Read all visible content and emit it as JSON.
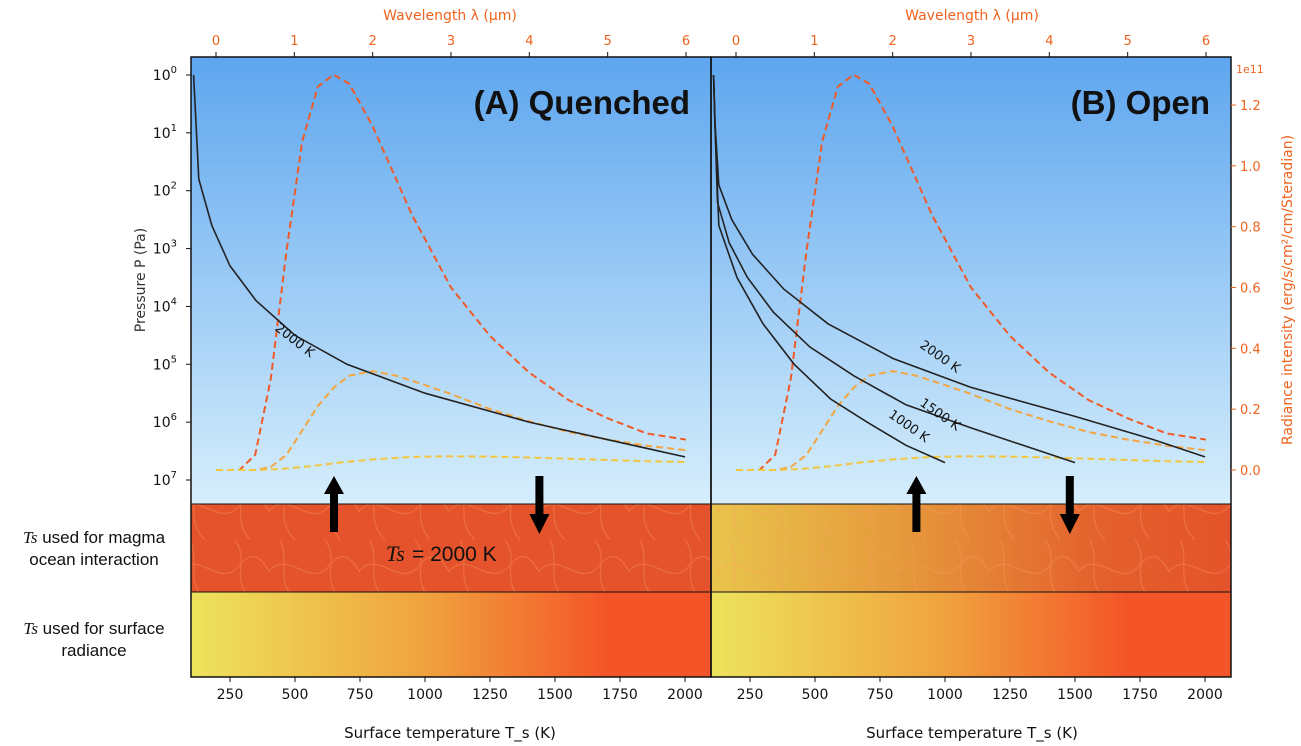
{
  "chart_data": [
    {
      "type": "line",
      "panel_label": "(A) Quenched",
      "top_xlabel": "Wavelength λ (μm)",
      "top_xlim": [
        0,
        6
      ],
      "top_xticks": [
        0,
        1,
        2,
        3,
        4,
        5,
        6
      ],
      "bottom_xlabel": "Surface temperature T_s (K)",
      "bottom_xlim": [
        100,
        2100
      ],
      "bottom_xticks": [
        250,
        500,
        750,
        1000,
        1250,
        1500,
        1750,
        2000
      ],
      "ylabel": "Pressure P (Pa)",
      "yscale": "log",
      "yaxis_inverted": true,
      "yticks": [
        "10^0",
        "10^1",
        "10^2",
        "10^3",
        "10^4",
        "10^5",
        "10^6",
        "10^7"
      ],
      "right_ylabel": "Radiance intensity (erg/s/cm²/cm/Steradian)",
      "right_ylim_1e11": [
        -0.05,
        1.35
      ],
      "right_yticks": [
        "0.0",
        "0.2",
        "0.4",
        "0.6",
        "0.8",
        "1.0",
        "1.2"
      ],
      "right_axis_offset": "1e11",
      "pt_profiles": [
        {
          "label": "2000 K",
          "T": [
            110,
            130,
            180,
            250,
            350,
            500,
            700,
            1000,
            1400,
            1800,
            2000
          ],
          "logP": [
            0,
            1.8,
            2.6,
            3.3,
            3.9,
            4.5,
            5.0,
            5.5,
            6.0,
            6.4,
            6.6
          ]
        }
      ],
      "spectra": [
        {
          "color": "#f05a28",
          "lambda_um": [
            0,
            0.1,
            0.3,
            0.5,
            0.7,
            0.9,
            1.1,
            1.3,
            1.5,
            1.7,
            2.0,
            2.5,
            3.0,
            3.5,
            4.0,
            4.5,
            5.0,
            5.5,
            6.0
          ],
          "radiance_1e11": [
            0,
            0,
            0,
            0.05,
            0.3,
            0.72,
            1.08,
            1.26,
            1.3,
            1.27,
            1.13,
            0.84,
            0.6,
            0.44,
            0.32,
            0.23,
            0.17,
            0.12,
            0.1
          ]
        },
        {
          "color": "#f2a541",
          "lambda_um": [
            0,
            0.3,
            0.5,
            0.7,
            0.9,
            1.1,
            1.3,
            1.5,
            1.7,
            2.0,
            2.3,
            2.6,
            3.0,
            3.5,
            4.0,
            4.5,
            5.0,
            5.5,
            6.0
          ],
          "radiance_1e11": [
            0,
            0,
            0,
            0.01,
            0.05,
            0.13,
            0.21,
            0.27,
            0.31,
            0.325,
            0.31,
            0.285,
            0.25,
            0.2,
            0.16,
            0.125,
            0.1,
            0.08,
            0.065
          ]
        },
        {
          "color": "#f3c63f",
          "lambda_um": [
            0,
            0.5,
            0.8,
            1.2,
            1.6,
            2.0,
            2.5,
            3.0,
            3.5,
            4.0,
            4.5,
            5.0,
            5.5,
            6.0
          ],
          "radiance_1e11": [
            0,
            0,
            0.003,
            0.012,
            0.025,
            0.035,
            0.043,
            0.045,
            0.044,
            0.041,
            0.037,
            0.033,
            0.029,
            0.026
          ]
        }
      ],
      "arrows": [
        {
          "direction": "up",
          "T": 650
        },
        {
          "direction": "down",
          "T": 1440
        }
      ],
      "magma_annotation": "= 2000 K",
      "magma_annotation_symbol": "Ts"
    },
    {
      "type": "line",
      "panel_label": "(B) Open",
      "top_xlabel": "Wavelength λ (μm)",
      "top_xlim": [
        0,
        6
      ],
      "top_xticks": [
        0,
        1,
        2,
        3,
        4,
        5,
        6
      ],
      "bottom_xlabel": "Surface temperature T_s (K)",
      "bottom_xlim": [
        100,
        2100
      ],
      "bottom_xticks": [
        250,
        500,
        750,
        1000,
        1250,
        1500,
        1750,
        2000
      ],
      "yscale": "log",
      "yaxis_inverted": true,
      "right_ylabel": "Radiance intensity (erg/s/cm²/cm/Steradian)",
      "right_ylim_1e11": [
        -0.05,
        1.35
      ],
      "right_yticks": [
        "0.0",
        "0.2",
        "0.4",
        "0.6",
        "0.8",
        "1.0",
        "1.2"
      ],
      "right_axis_offset": "1e11",
      "pt_profiles": [
        {
          "label": "2000 K",
          "T": [
            110,
            115,
            130,
            180,
            260,
            380,
            550,
            800,
            1100,
            1500,
            1800,
            2000
          ],
          "logP": [
            0,
            0.8,
            1.9,
            2.5,
            3.1,
            3.7,
            4.3,
            4.9,
            5.4,
            5.9,
            6.3,
            6.6
          ]
        },
        {
          "label": "1500 K",
          "T": [
            110,
            115,
            125,
            170,
            240,
            340,
            480,
            650,
            850,
            1100,
            1300,
            1500
          ],
          "logP": [
            0,
            0.8,
            2.2,
            2.9,
            3.5,
            4.1,
            4.7,
            5.2,
            5.7,
            6.1,
            6.4,
            6.7
          ]
        },
        {
          "label": "1000 K",
          "T": [
            110,
            115,
            130,
            200,
            300,
            420,
            560,
            700,
            850,
            1000
          ],
          "logP": [
            0,
            0.8,
            2.6,
            3.5,
            4.3,
            5.0,
            5.6,
            6.0,
            6.4,
            6.7
          ]
        }
      ],
      "spectra": [
        {
          "color": "#f05a28",
          "lambda_um": [
            0,
            0.1,
            0.3,
            0.5,
            0.7,
            0.9,
            1.1,
            1.3,
            1.5,
            1.7,
            2.0,
            2.5,
            3.0,
            3.5,
            4.0,
            4.5,
            5.0,
            5.5,
            6.0
          ],
          "radiance_1e11": [
            0,
            0,
            0,
            0.05,
            0.3,
            0.72,
            1.08,
            1.26,
            1.3,
            1.27,
            1.13,
            0.84,
            0.6,
            0.44,
            0.32,
            0.23,
            0.17,
            0.12,
            0.1
          ]
        },
        {
          "color": "#f2a541",
          "lambda_um": [
            0,
            0.3,
            0.5,
            0.7,
            0.9,
            1.1,
            1.3,
            1.5,
            1.7,
            2.0,
            2.3,
            2.6,
            3.0,
            3.5,
            4.0,
            4.5,
            5.0,
            5.5,
            6.0
          ],
          "radiance_1e11": [
            0,
            0,
            0,
            0.01,
            0.05,
            0.13,
            0.21,
            0.27,
            0.31,
            0.325,
            0.31,
            0.285,
            0.25,
            0.2,
            0.16,
            0.125,
            0.1,
            0.08,
            0.065
          ]
        },
        {
          "color": "#f3c63f",
          "lambda_um": [
            0,
            0.5,
            0.8,
            1.2,
            1.6,
            2.0,
            2.5,
            3.0,
            3.5,
            4.0,
            4.5,
            5.0,
            5.5,
            6.0
          ],
          "radiance_1e11": [
            0,
            0,
            0.003,
            0.012,
            0.025,
            0.035,
            0.043,
            0.045,
            0.044,
            0.041,
            0.037,
            0.033,
            0.029,
            0.026
          ]
        }
      ],
      "arrows": [
        {
          "direction": "up",
          "T": 890
        },
        {
          "direction": "down",
          "T": 1480
        }
      ]
    }
  ],
  "side_labels": {
    "magma_symbol": "Ts",
    "magma_text_line1": "used for magma",
    "magma_text_line2": "ocean interaction",
    "surface_symbol": "Ts",
    "surface_text_line1": "used for surface",
    "surface_text_line2": "radiance"
  },
  "colors": {
    "sky_top": "#5ea6ef",
    "sky_bottom": "#d6eefc",
    "magma": "#e4532b",
    "magma_yellow": "#e9c44c",
    "gradient_yellow": "#ede35c",
    "gradient_orange": "#f0a23e",
    "gradient_red": "#f45528",
    "accent_orange": "#f0631f"
  }
}
